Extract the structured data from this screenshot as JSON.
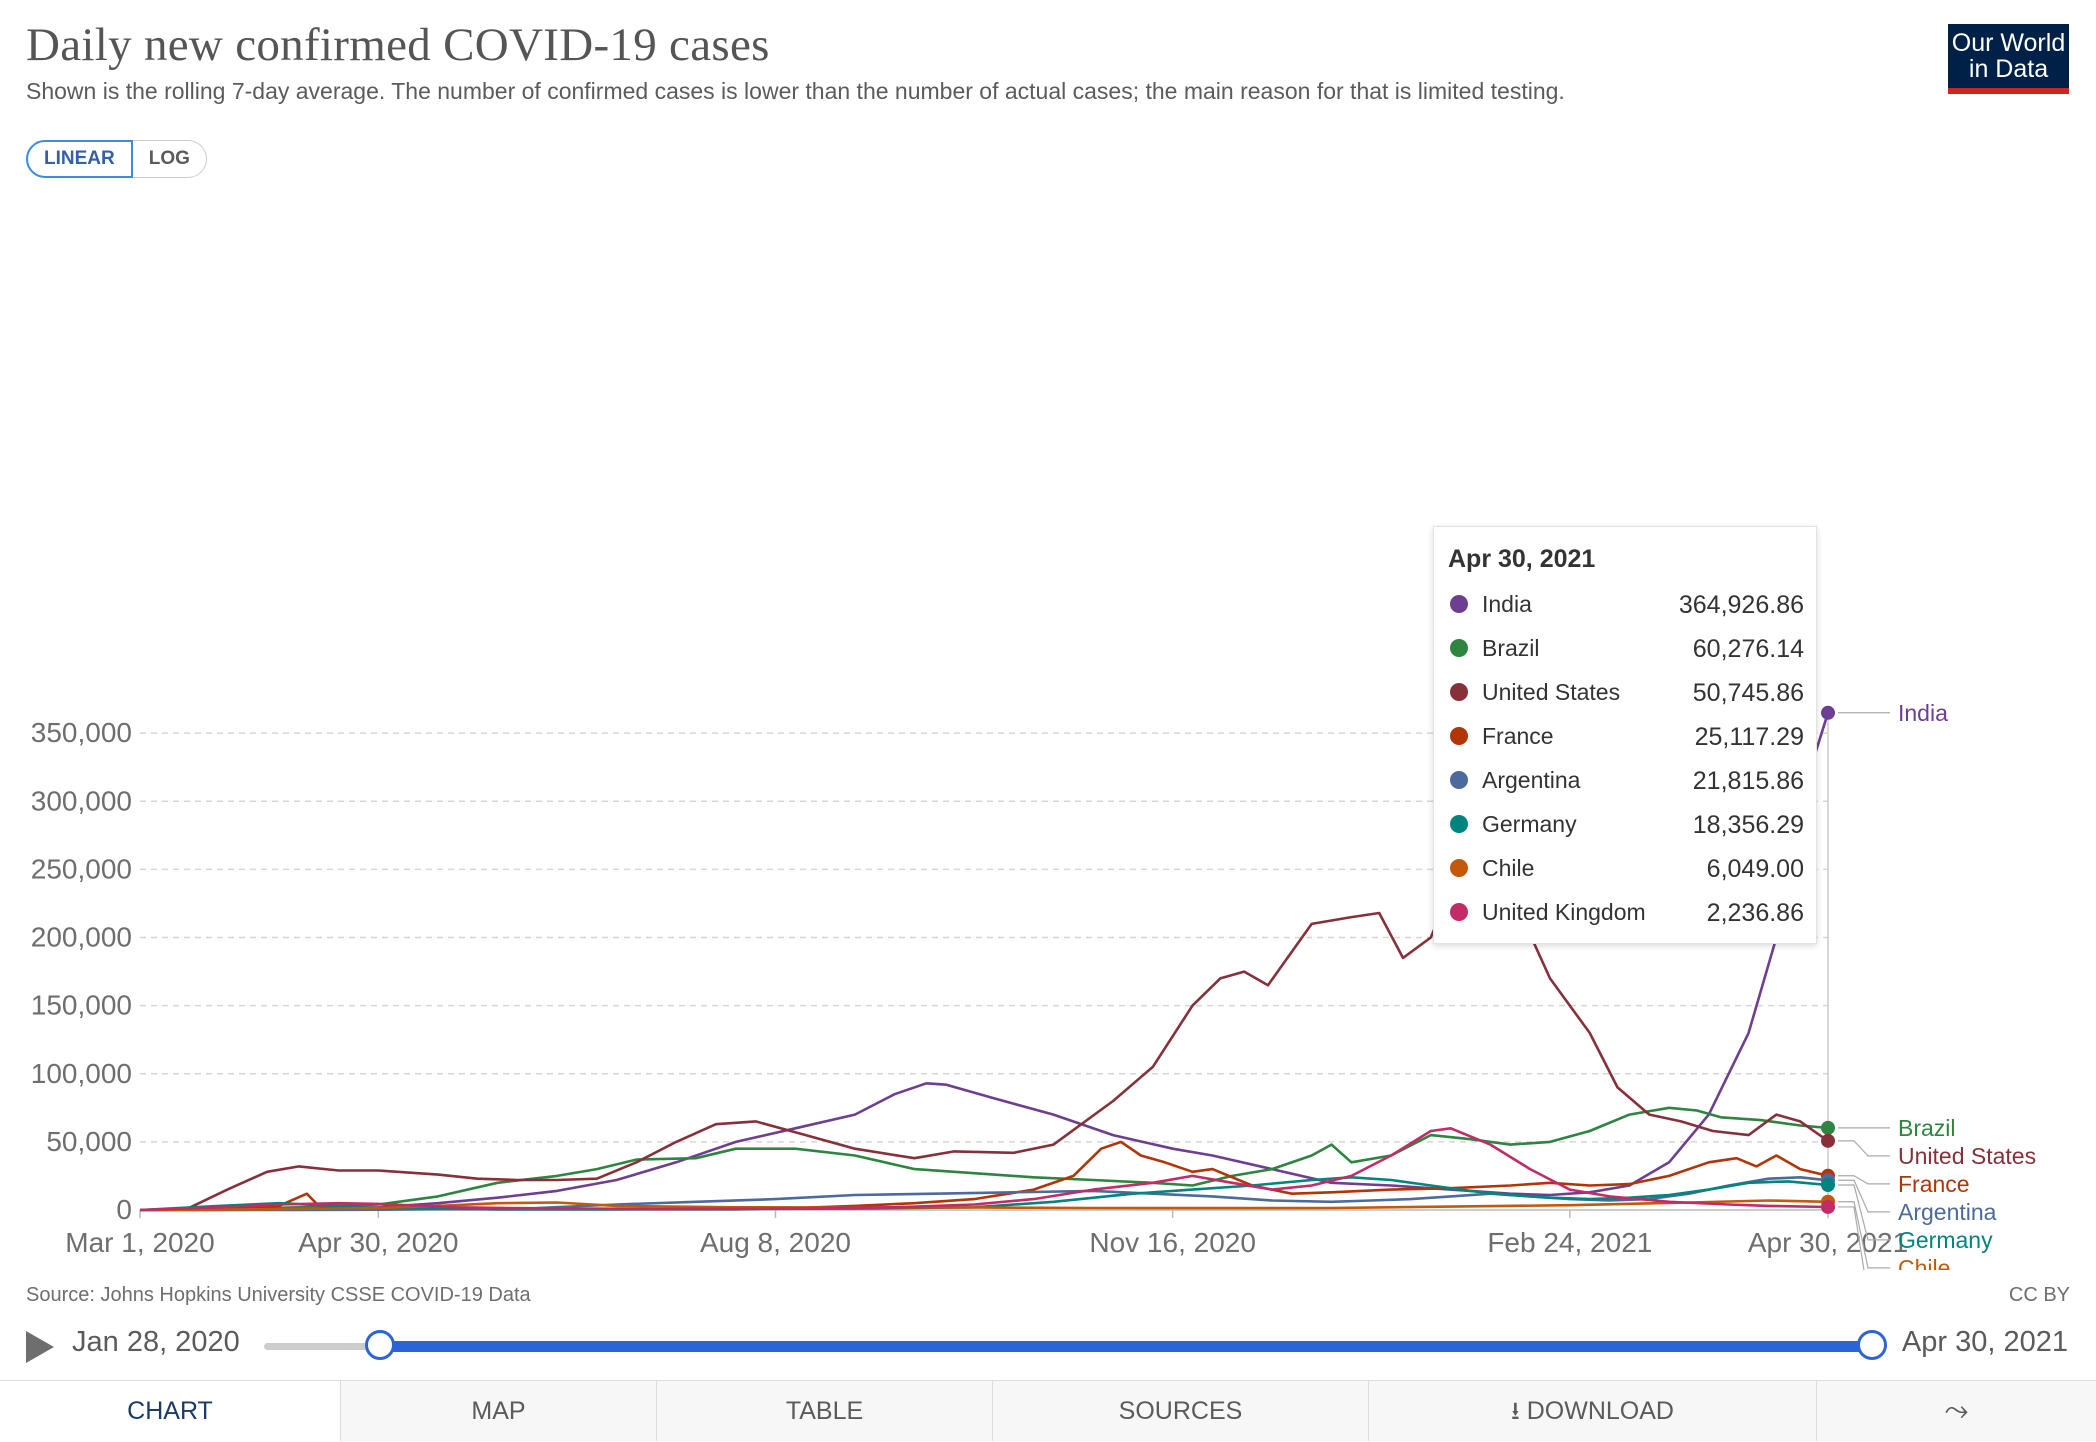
{
  "header": {
    "title": "Daily new confirmed COVID-19 cases",
    "subtitle": "Shown is the rolling 7-day average. The number of confirmed cases is lower than the number of actual cases; the main reason for that is limited testing.",
    "logo_line1": "Our World",
    "logo_line2": "in Data"
  },
  "scale_toggle": {
    "linear": "LINEAR",
    "log": "LOG",
    "selected": "LINEAR"
  },
  "chart_data": {
    "type": "line",
    "title": "Daily new confirmed COVID-19 cases",
    "xlabel": "",
    "ylabel": "",
    "ylim": [
      0,
      365000
    ],
    "x_range": [
      "2020-03-01",
      "2021-04-30"
    ],
    "x_ticks": [
      "Mar 1, 2020",
      "Apr 30, 2020",
      "Aug 8, 2020",
      "Nov 16, 2020",
      "Feb 24, 2021",
      "Apr 30, 2021"
    ],
    "x_tick_days": [
      0,
      60,
      160,
      260,
      360,
      425
    ],
    "y_ticks": [
      0,
      50000,
      100000,
      150000,
      200000,
      250000,
      300000,
      350000
    ],
    "y_tick_labels": [
      "0",
      "50,000",
      "100,000",
      "150,000",
      "200,000",
      "250,000",
      "300,000",
      "350,000"
    ],
    "grid": true,
    "legend": "right end labels",
    "series": [
      {
        "name": "India",
        "color": "#6d3e91",
        "points": [
          [
            0,
            0
          ],
          [
            15,
            0
          ],
          [
            30,
            200
          ],
          [
            45,
            1000
          ],
          [
            60,
            2000
          ],
          [
            75,
            5000
          ],
          [
            90,
            9000
          ],
          [
            105,
            14000
          ],
          [
            120,
            22000
          ],
          [
            135,
            35000
          ],
          [
            150,
            50000
          ],
          [
            165,
            60000
          ],
          [
            180,
            70000
          ],
          [
            190,
            85000
          ],
          [
            198,
            93000
          ],
          [
            203,
            92000
          ],
          [
            215,
            82000
          ],
          [
            230,
            70000
          ],
          [
            245,
            55000
          ],
          [
            260,
            45000
          ],
          [
            270,
            40000
          ],
          [
            285,
            30000
          ],
          [
            300,
            20000
          ],
          [
            315,
            18000
          ],
          [
            330,
            15000
          ],
          [
            345,
            12000
          ],
          [
            355,
            11000
          ],
          [
            365,
            13000
          ],
          [
            375,
            18000
          ],
          [
            385,
            35000
          ],
          [
            395,
            70000
          ],
          [
            405,
            130000
          ],
          [
            412,
            200000
          ],
          [
            418,
            300000
          ],
          [
            425,
            364926.86
          ]
        ]
      },
      {
        "name": "Brazil",
        "color": "#2d8540",
        "points": [
          [
            0,
            0
          ],
          [
            20,
            500
          ],
          [
            40,
            2000
          ],
          [
            60,
            4000
          ],
          [
            75,
            10000
          ],
          [
            90,
            20000
          ],
          [
            105,
            25000
          ],
          [
            115,
            30000
          ],
          [
            125,
            37000
          ],
          [
            140,
            38000
          ],
          [
            150,
            45000
          ],
          [
            165,
            45000
          ],
          [
            180,
            40000
          ],
          [
            195,
            30000
          ],
          [
            210,
            27000
          ],
          [
            225,
            24000
          ],
          [
            240,
            22000
          ],
          [
            255,
            20000
          ],
          [
            265,
            18000
          ],
          [
            275,
            25000
          ],
          [
            285,
            30000
          ],
          [
            295,
            40000
          ],
          [
            300,
            48000
          ],
          [
            305,
            35000
          ],
          [
            315,
            40000
          ],
          [
            325,
            55000
          ],
          [
            335,
            52000
          ],
          [
            345,
            48000
          ],
          [
            355,
            50000
          ],
          [
            365,
            58000
          ],
          [
            375,
            70000
          ],
          [
            385,
            75000
          ],
          [
            392,
            73000
          ],
          [
            398,
            68000
          ],
          [
            408,
            66000
          ],
          [
            418,
            62000
          ],
          [
            425,
            60276.14
          ]
        ]
      },
      {
        "name": "United States",
        "color": "#883039",
        "points": [
          [
            0,
            0
          ],
          [
            12,
            1000
          ],
          [
            22,
            15000
          ],
          [
            32,
            28000
          ],
          [
            40,
            32000
          ],
          [
            50,
            29000
          ],
          [
            60,
            29000
          ],
          [
            75,
            26000
          ],
          [
            85,
            23000
          ],
          [
            95,
            22000
          ],
          [
            105,
            22000
          ],
          [
            115,
            23000
          ],
          [
            125,
            35000
          ],
          [
            135,
            50000
          ],
          [
            145,
            63000
          ],
          [
            155,
            65000
          ],
          [
            165,
            57000
          ],
          [
            180,
            45000
          ],
          [
            195,
            38000
          ],
          [
            205,
            43000
          ],
          [
            220,
            42000
          ],
          [
            230,
            48000
          ],
          [
            245,
            80000
          ],
          [
            255,
            105000
          ],
          [
            265,
            150000
          ],
          [
            272,
            170000
          ],
          [
            278,
            175000
          ],
          [
            284,
            165000
          ],
          [
            295,
            210000
          ],
          [
            305,
            215000
          ],
          [
            312,
            218000
          ],
          [
            318,
            185000
          ],
          [
            325,
            200000
          ],
          [
            330,
            235000
          ],
          [
            335,
            250000
          ],
          [
            340,
            245000
          ],
          [
            348,
            215000
          ],
          [
            355,
            170000
          ],
          [
            365,
            130000
          ],
          [
            372,
            90000
          ],
          [
            380,
            70000
          ],
          [
            388,
            65000
          ],
          [
            396,
            58000
          ],
          [
            405,
            55000
          ],
          [
            412,
            70000
          ],
          [
            418,
            65000
          ],
          [
            425,
            50745.86
          ]
        ]
      },
      {
        "name": "France",
        "color": "#b13507",
        "points": [
          [
            0,
            0
          ],
          [
            20,
            1000
          ],
          [
            35,
            3000
          ],
          [
            42,
            12000
          ],
          [
            45,
            3000
          ],
          [
            60,
            1000
          ],
          [
            90,
            500
          ],
          [
            120,
            500
          ],
          [
            150,
            500
          ],
          [
            165,
            1500
          ],
          [
            180,
            3000
          ],
          [
            195,
            5000
          ],
          [
            210,
            8000
          ],
          [
            225,
            15000
          ],
          [
            235,
            25000
          ],
          [
            242,
            45000
          ],
          [
            247,
            50000
          ],
          [
            252,
            40000
          ],
          [
            258,
            35000
          ],
          [
            265,
            28000
          ],
          [
            270,
            30000
          ],
          [
            280,
            18000
          ],
          [
            290,
            12000
          ],
          [
            300,
            13000
          ],
          [
            315,
            15000
          ],
          [
            330,
            16000
          ],
          [
            345,
            18000
          ],
          [
            355,
            20000
          ],
          [
            365,
            18000
          ],
          [
            375,
            19000
          ],
          [
            385,
            25000
          ],
          [
            395,
            35000
          ],
          [
            402,
            38000
          ],
          [
            407,
            32000
          ],
          [
            412,
            40000
          ],
          [
            418,
            30000
          ],
          [
            425,
            25117.29
          ]
        ]
      },
      {
        "name": "Argentina",
        "color": "#4c6a9c",
        "points": [
          [
            0,
            0
          ],
          [
            40,
            100
          ],
          [
            60,
            200
          ],
          [
            80,
            800
          ],
          [
            100,
            1500
          ],
          [
            120,
            4000
          ],
          [
            140,
            6000
          ],
          [
            160,
            8000
          ],
          [
            180,
            11000
          ],
          [
            200,
            12000
          ],
          [
            220,
            13000
          ],
          [
            240,
            14000
          ],
          [
            255,
            12000
          ],
          [
            270,
            10000
          ],
          [
            285,
            7000
          ],
          [
            300,
            6000
          ],
          [
            310,
            7000
          ],
          [
            320,
            8000
          ],
          [
            330,
            10000
          ],
          [
            340,
            12000
          ],
          [
            350,
            10000
          ],
          [
            360,
            8000
          ],
          [
            370,
            7000
          ],
          [
            380,
            8000
          ],
          [
            390,
            12000
          ],
          [
            400,
            18000
          ],
          [
            410,
            23000
          ],
          [
            418,
            24000
          ],
          [
            425,
            21815.86
          ]
        ]
      },
      {
        "name": "Germany",
        "color": "#00847e",
        "points": [
          [
            0,
            0
          ],
          [
            20,
            3000
          ],
          [
            35,
            5000
          ],
          [
            50,
            3000
          ],
          [
            60,
            1500
          ],
          [
            90,
            500
          ],
          [
            120,
            500
          ],
          [
            150,
            800
          ],
          [
            180,
            1000
          ],
          [
            210,
            2000
          ],
          [
            230,
            6000
          ],
          [
            250,
            12000
          ],
          [
            265,
            15000
          ],
          [
            280,
            18000
          ],
          [
            295,
            22000
          ],
          [
            305,
            24000
          ],
          [
            315,
            22000
          ],
          [
            325,
            18000
          ],
          [
            335,
            14000
          ],
          [
            345,
            11000
          ],
          [
            355,
            9000
          ],
          [
            365,
            8000
          ],
          [
            375,
            9000
          ],
          [
            385,
            11000
          ],
          [
            395,
            15000
          ],
          [
            405,
            20000
          ],
          [
            415,
            21000
          ],
          [
            425,
            18356.29
          ]
        ]
      },
      {
        "name": "Chile",
        "color": "#c15a0b",
        "points": [
          [
            0,
            0
          ],
          [
            30,
            500
          ],
          [
            60,
            1500
          ],
          [
            75,
            3000
          ],
          [
            90,
            5000
          ],
          [
            105,
            5500
          ],
          [
            120,
            3000
          ],
          [
            150,
            2000
          ],
          [
            180,
            1800
          ],
          [
            210,
            1800
          ],
          [
            240,
            1500
          ],
          [
            270,
            1400
          ],
          [
            300,
            1500
          ],
          [
            330,
            2500
          ],
          [
            360,
            3500
          ],
          [
            390,
            5500
          ],
          [
            410,
            7000
          ],
          [
            425,
            6049
          ]
        ]
      },
      {
        "name": "United Kingdom",
        "color": "#c32b66",
        "points": [
          [
            0,
            0
          ],
          [
            20,
            2000
          ],
          [
            35,
            4000
          ],
          [
            50,
            5000
          ],
          [
            60,
            4500
          ],
          [
            80,
            2000
          ],
          [
            100,
            1200
          ],
          [
            130,
            800
          ],
          [
            160,
            1000
          ],
          [
            190,
            2000
          ],
          [
            210,
            4000
          ],
          [
            225,
            8000
          ],
          [
            240,
            15000
          ],
          [
            255,
            20000
          ],
          [
            265,
            25000
          ],
          [
            275,
            20000
          ],
          [
            285,
            15000
          ],
          [
            295,
            18000
          ],
          [
            305,
            25000
          ],
          [
            315,
            40000
          ],
          [
            325,
            58000
          ],
          [
            330,
            60000
          ],
          [
            340,
            48000
          ],
          [
            350,
            30000
          ],
          [
            360,
            15000
          ],
          [
            370,
            10000
          ],
          [
            385,
            6000
          ],
          [
            400,
            4000
          ],
          [
            410,
            3000
          ],
          [
            425,
            2236.86
          ]
        ]
      }
    ]
  },
  "end_labels": [
    "India",
    "Brazil",
    "United States",
    "France",
    "Argentina",
    "Germany",
    "Chile",
    "United Kingdom"
  ],
  "tooltip": {
    "date": "Apr 30, 2021",
    "rows": [
      {
        "name": "India",
        "value": "364,926.86",
        "color": "#6d3e91"
      },
      {
        "name": "Brazil",
        "value": "60,276.14",
        "color": "#2d8540"
      },
      {
        "name": "United States",
        "value": "50,745.86",
        "color": "#883039"
      },
      {
        "name": "France",
        "value": "25,117.29",
        "color": "#b13507"
      },
      {
        "name": "Argentina",
        "value": "21,815.86",
        "color": "#4c6a9c"
      },
      {
        "name": "Germany",
        "value": "18,356.29",
        "color": "#00847e"
      },
      {
        "name": "Chile",
        "value": "6,049.00",
        "color": "#c15a0b"
      },
      {
        "name": "United Kingdom",
        "value": "2,236.86",
        "color": "#c32b66"
      }
    ]
  },
  "footer": {
    "source": "Source: Johns Hopkins University CSSE COVID-19 Data",
    "license": "CC BY"
  },
  "timeline": {
    "start": "Jan 28, 2020",
    "end": "Apr 30, 2021"
  },
  "tabs": [
    "CHART",
    "MAP",
    "TABLE",
    "SOURCES",
    "DOWNLOAD"
  ],
  "colors": {
    "accent": "#2b64d6",
    "logo_bg": "#002147",
    "logo_bar": "#ce261e"
  }
}
